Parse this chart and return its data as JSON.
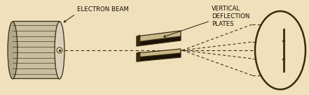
{
  "bg_color": "#f0e0bc",
  "line_color": "#3a2a10",
  "dashed_color": "#3a2a10",
  "label_electron_beam": "ELECTRON BEAM",
  "label_deflection": "VERTICAL\nDEFLECTION\nPLATES",
  "label_fontsize": 6.2,
  "label_color": "#1a0e04",
  "fig_width": 4.41,
  "fig_height": 1.36,
  "dpi": 100
}
